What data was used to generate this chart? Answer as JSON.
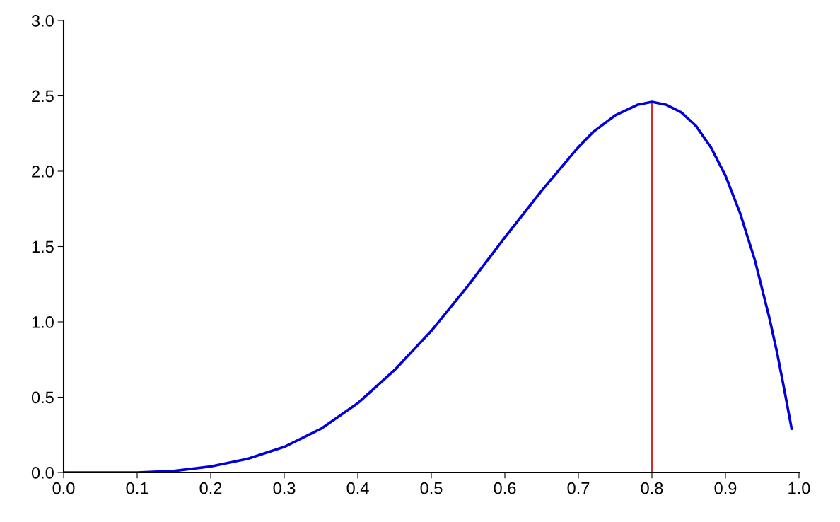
{
  "chart_data": {
    "type": "line",
    "x": [
      0,
      0.05,
      0.1,
      0.15,
      0.2,
      0.25,
      0.3,
      0.35,
      0.4,
      0.45,
      0.5,
      0.55,
      0.6,
      0.65,
      0.7,
      0.72,
      0.75,
      0.78,
      0.8,
      0.82,
      0.84,
      0.86,
      0.88,
      0.9,
      0.92,
      0.94,
      0.96,
      0.97,
      0.98,
      0.99
    ],
    "series": [
      {
        "color": "#0000dd",
        "values": [
          0,
          0.0,
          0.0,
          0.01,
          0.04,
          0.09,
          0.17,
          0.29,
          0.46,
          0.68,
          0.94,
          1.24,
          1.56,
          1.87,
          2.16,
          2.26,
          2.37,
          2.44,
          2.46,
          2.44,
          2.39,
          2.3,
          2.16,
          1.97,
          1.72,
          1.41,
          1.02,
          0.8,
          0.55,
          0.29
        ]
      }
    ],
    "xlim": [
      0,
      1.0
    ],
    "xticks": [
      {
        "value": 0,
        "label": "0.0"
      },
      0.1,
      0.2,
      0.3,
      0.4,
      0.5,
      0.6,
      0.7,
      0.8,
      0.9,
      {
        "value": 1.0,
        "label": "1.0"
      }
    ],
    "ylim": [
      0,
      3.0
    ],
    "yticks": [
      {
        "value": 0,
        "label": "0.0"
      },
      0.5,
      {
        "value": 1,
        "label": "1.0"
      },
      1.5,
      {
        "value": 2,
        "label": "2.0"
      },
      2.5,
      {
        "value": 3,
        "label": "3.0"
      }
    ],
    "ref_lines": [
      {
        "axis": "x",
        "value": 0.8,
        "color": "#cc0000"
      }
    ],
    "grid": false
  }
}
